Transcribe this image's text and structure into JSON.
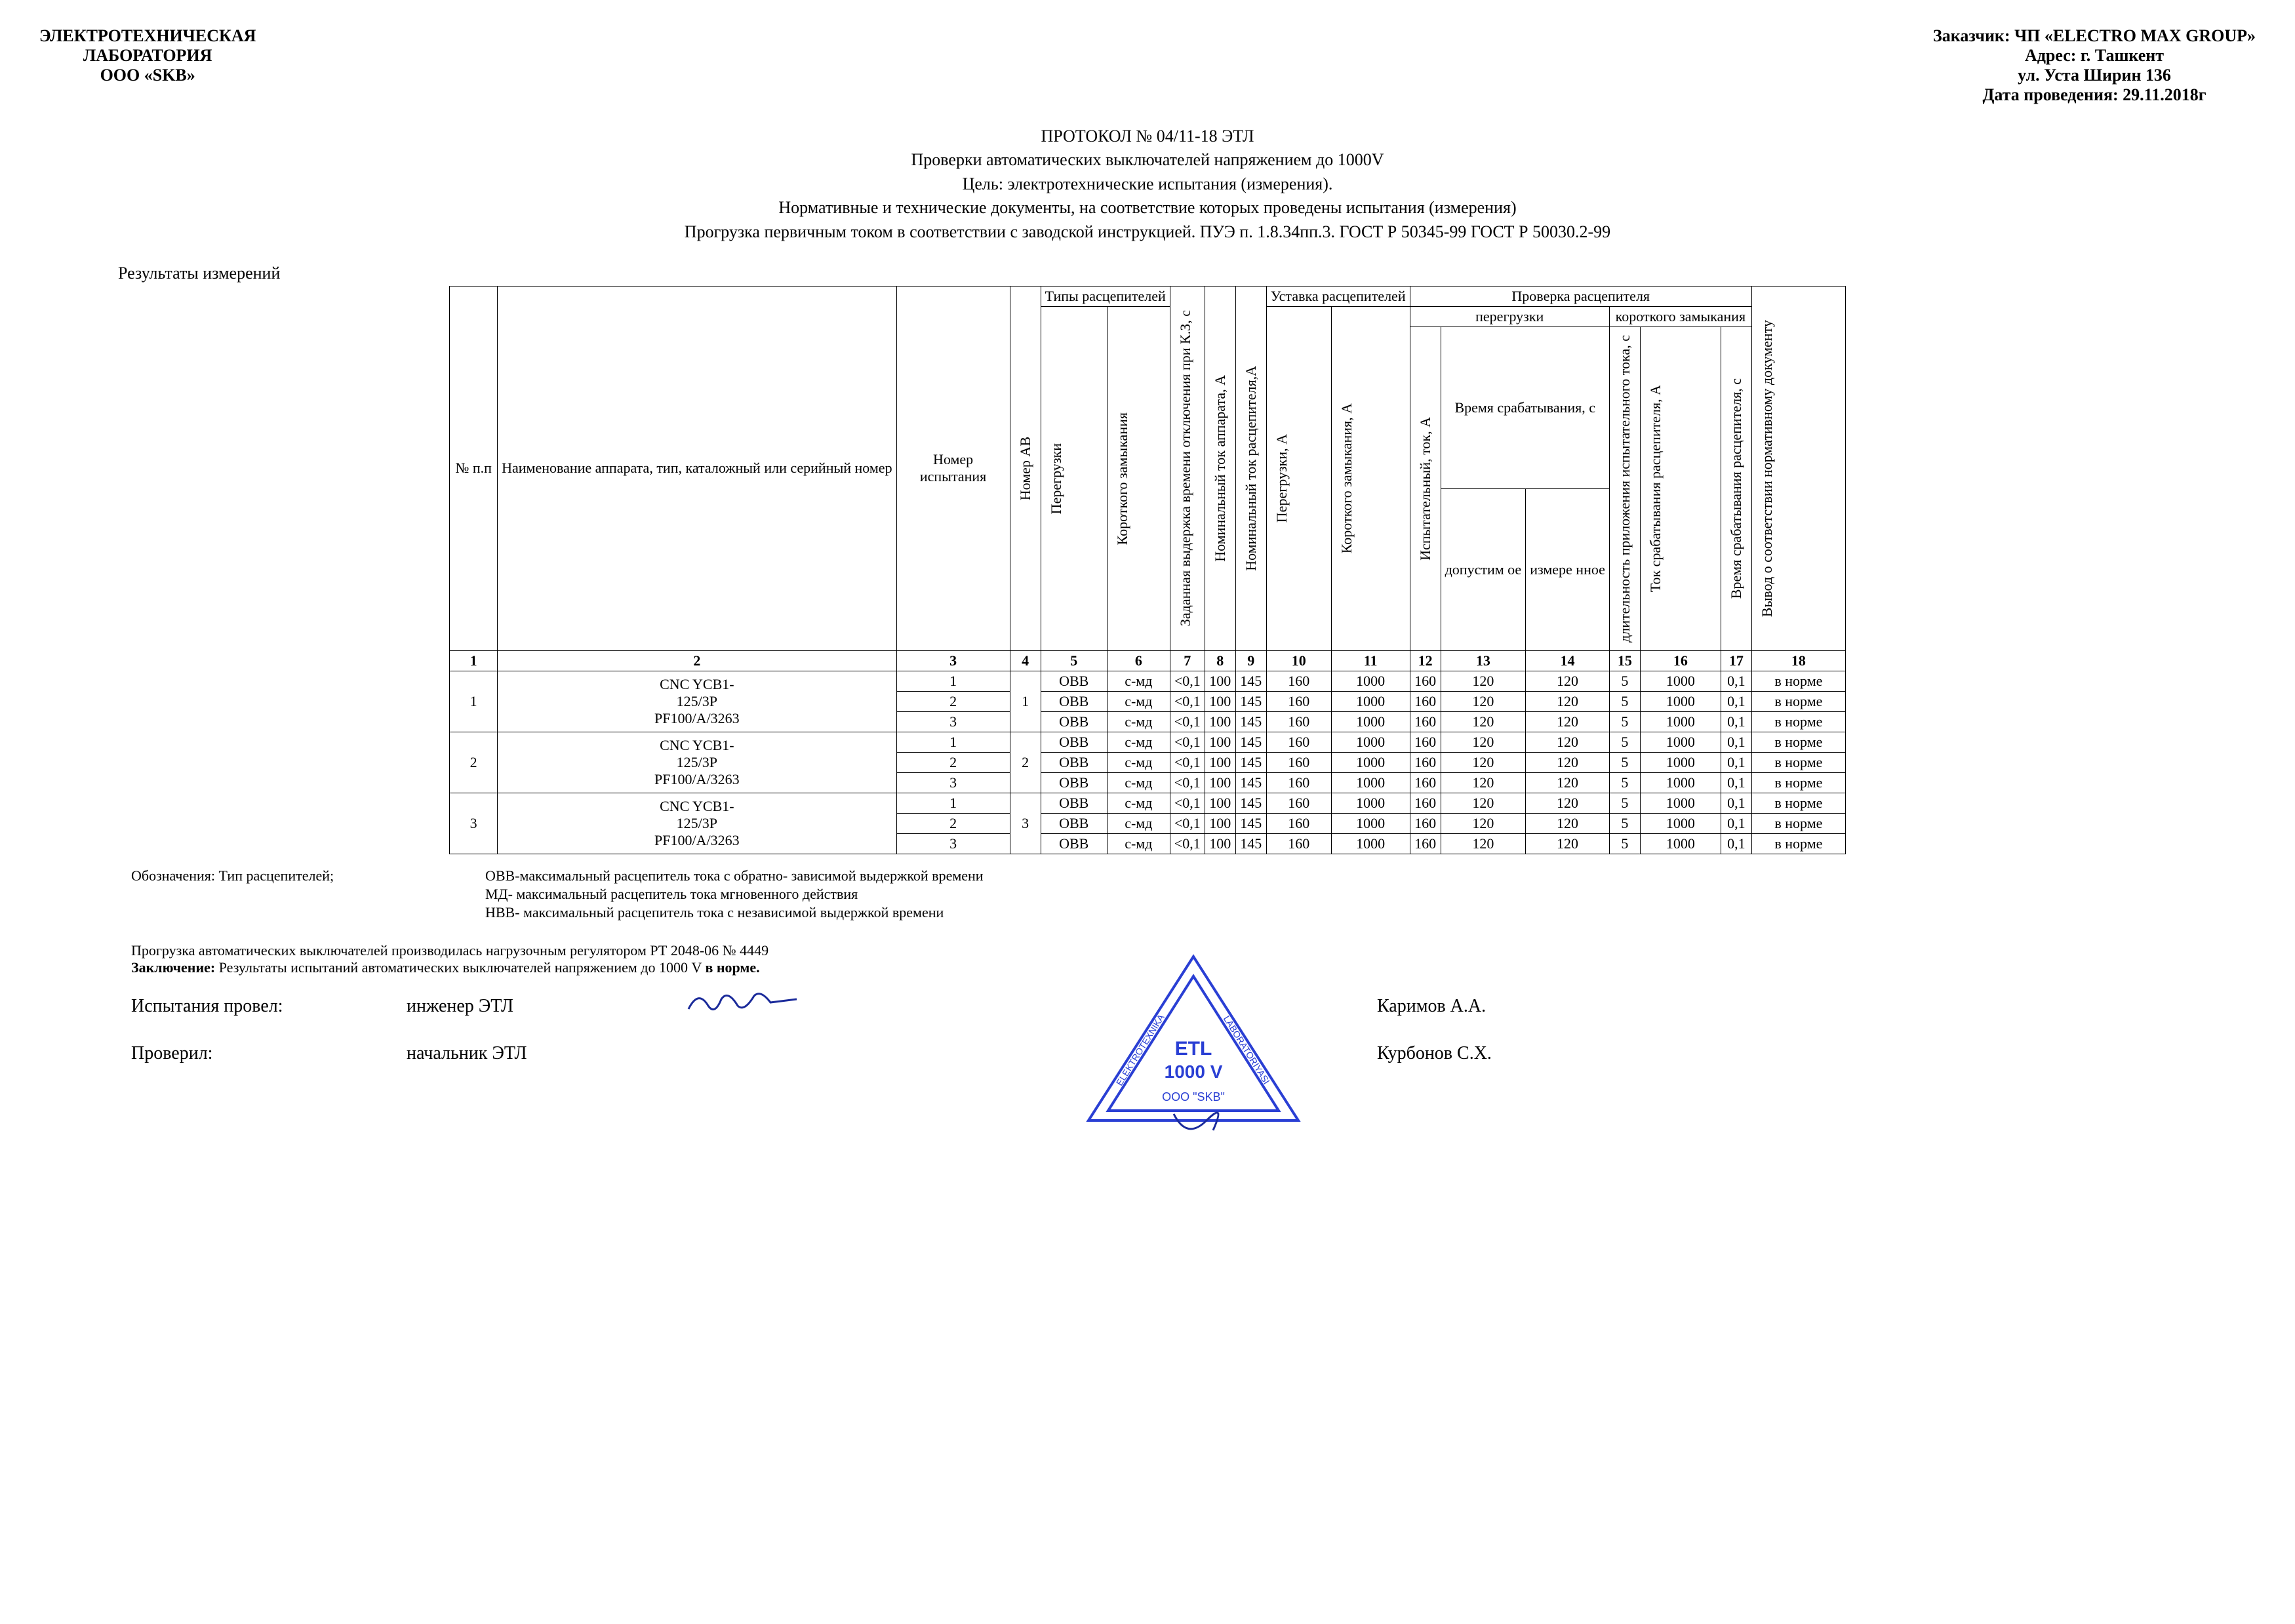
{
  "header": {
    "left_line1": "ЭЛЕКТРОТЕХНИЧЕСКАЯ",
    "left_line2": "ЛАБОРАТОРИЯ",
    "left_line3": "ООО «SKB»",
    "right_line1": "Заказчик: ЧП «ELECTRO MAX GROUP»",
    "right_line2": "Адрес: г. Ташкент",
    "right_line3": "ул. Уста Ширин 136",
    "right_line4": "Дата проведения: 29.11.2018г"
  },
  "title": {
    "line1": "ПРОТОКОЛ № 04/11-18 ЭТЛ",
    "line2": "Проверки автоматических выключателей напряжением до 1000V",
    "line3": "Цель: электротехнические испытания (измерения).",
    "line4": "Нормативные и технические документы, на соответствие которых проведены испытания (измерения)",
    "line5": "Прогрузка первичным током в соответствии с заводской инструкцией. ПУЭ п. 1.8.34пп.3. ГОСТ Р 50345-99 ГОСТ Р 50030.2-99"
  },
  "results_label": "Результаты измерений",
  "columns": {
    "c1": "№ п.п",
    "c2": "Наименование аппарата, тип, каталожный или серийный номер",
    "c3": "Номер испытания",
    "c4": "Номер АВ",
    "types_header": "Типы расцепителей",
    "c5": "Перегрузки",
    "c6": "Короткого замыкания",
    "c7": "Заданная выдержка времени отключения при К.З, с",
    "c8": "Номинальный ток аппарата, А",
    "c9": "Номинальный ток расцепителя,А",
    "ustavka_header": "Уставка расцепителей",
    "c10": "Перегрузки, А",
    "c11": "Короткого замыкания, А",
    "check_header": "Проверка расцепителя",
    "overload_sub": "перегрузки",
    "short_sub": "короткого замыкания",
    "c12": "Испытательный, ток, А",
    "time_trig": "Время срабатывания, с",
    "c13": "допустим ое",
    "c14": "измере нное",
    "c15": "длительность приложения испытательного тока, с",
    "c16": "Ток срабатывания расцепителя, А",
    "c17": "Время срабатывания расцепителя, с",
    "c18": "Вывод о соответствии нормативному документу"
  },
  "numrow": [
    "1",
    "2",
    "3",
    "4",
    "5",
    "6",
    "7",
    "8",
    "9",
    "10",
    "11",
    "12",
    "13",
    "14",
    "15",
    "16",
    "17",
    "18"
  ],
  "device_name_l1": "CNC YCB1-",
  "device_name_l2": "125/3P",
  "device_name_l3": "PF100/А/3263",
  "groups": [
    {
      "n": "1",
      "ab": "1",
      "tests": [
        "1",
        "2",
        "3"
      ]
    },
    {
      "n": "2",
      "ab": "2",
      "tests": [
        "1",
        "2",
        "3"
      ]
    },
    {
      "n": "3",
      "ab": "3",
      "tests": [
        "1",
        "2",
        "3"
      ]
    }
  ],
  "row_vals": {
    "c5": "ОВВ",
    "c6": "с-мд",
    "c7": "<0,1",
    "c8": "100",
    "c9": "145",
    "c10": "160",
    "c11": "1000",
    "c12": "160",
    "c13": "120",
    "c14": "120",
    "c15": "5",
    "c16": "1000",
    "c17": "0,1",
    "c18": "в норме"
  },
  "legend": {
    "label": "Обозначения: Тип расцепителей;",
    "l1": "ОВВ-максимальный расцепитель тока с обратно- зависимой выдержкой времени",
    "l2": "МД- максимальный расцепитель тока мгновенного действия",
    "l3": "НВВ- максимальный расцепитель тока с независимой выдержкой времени"
  },
  "footer": {
    "f1": "Прогрузка автоматических выключателей производилась нагрузочным регулятором РТ 2048-06 № 4449",
    "f2a": "Заключение: ",
    "f2b": "Результаты испытаний автоматических выключателей напряжением до 1000 V ",
    "f2c": "в норме."
  },
  "sig": {
    "tested_label": "Испытания провел:",
    "checked_label": "Проверил:",
    "tested_role": "инженер ЭТЛ",
    "checked_role": "начальник ЭТЛ",
    "name1": "Каримов А.А.",
    "name2": "Курбонов С.Х."
  },
  "stamp": {
    "color": "#2a3fd4",
    "text_top": "ELEKTROTEXNIKA",
    "text_right": "LABORATORIYASI",
    "etl": "ETL",
    "v": "1000 V",
    "ooo": "ООО \"SKB\""
  }
}
